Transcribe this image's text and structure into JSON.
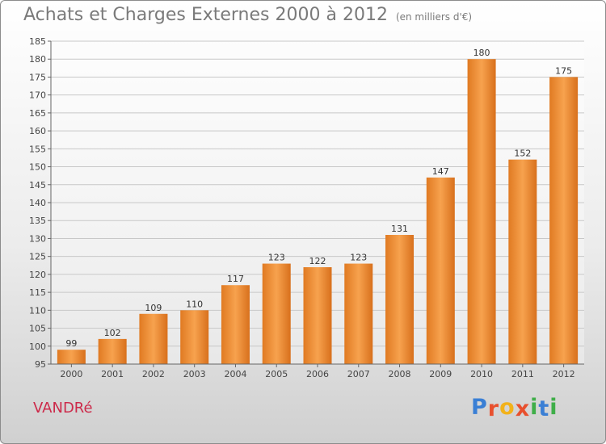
{
  "chart_data": {
    "type": "bar",
    "title": "Achats et Charges Externes 2000 à 2012",
    "subtitle": "(en milliers d'€)",
    "categories": [
      "2000",
      "2001",
      "2002",
      "2003",
      "2004",
      "2005",
      "2006",
      "2007",
      "2008",
      "2009",
      "2010",
      "2011",
      "2012"
    ],
    "values": [
      99,
      102,
      109,
      110,
      117,
      123,
      122,
      123,
      131,
      147,
      180,
      152,
      175
    ],
    "xlabel": "",
    "ylabel": "",
    "ylim": [
      95,
      185
    ],
    "yticks": [
      95,
      100,
      105,
      110,
      115,
      120,
      125,
      130,
      135,
      140,
      145,
      150,
      155,
      160,
      165,
      170,
      175,
      180,
      185
    ],
    "grid": true,
    "bar_color": "#f0923c",
    "data_labels": true
  },
  "commune": "VANDRé",
  "logo": {
    "letters": [
      "P",
      "r",
      "o",
      "x",
      "i",
      "t",
      "i"
    ],
    "colors": [
      "#3a7fd5",
      "#e8502e",
      "#f2b21b",
      "#e8502e",
      "#3fae49",
      "#3a7fd5",
      "#3fae49"
    ]
  }
}
